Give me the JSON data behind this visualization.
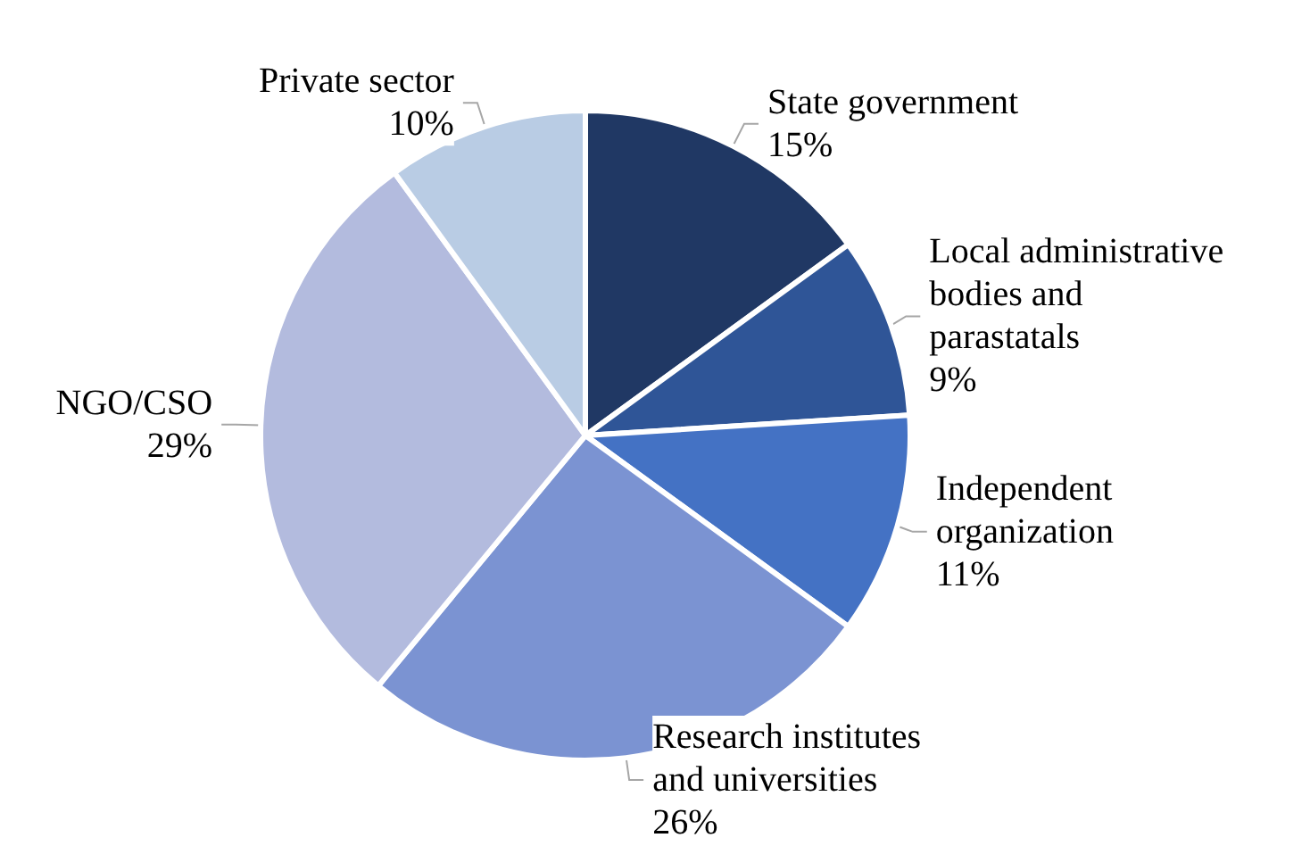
{
  "chart_data": {
    "type": "pie",
    "categories": [
      "State government",
      "Local administrative bodies and parastatals",
      "Independent organization",
      "Research institutes and universities",
      "NGO/CSO",
      "Private sector"
    ],
    "values": [
      15,
      9,
      11,
      26,
      29,
      10
    ],
    "value_labels": [
      "15%",
      "9%",
      "11%",
      "26%",
      "29%",
      "10%"
    ],
    "colors": [
      "#203864",
      "#2f5597",
      "#4472c4",
      "#7b93d2",
      "#b3bbde",
      "#b9cce4"
    ]
  }
}
